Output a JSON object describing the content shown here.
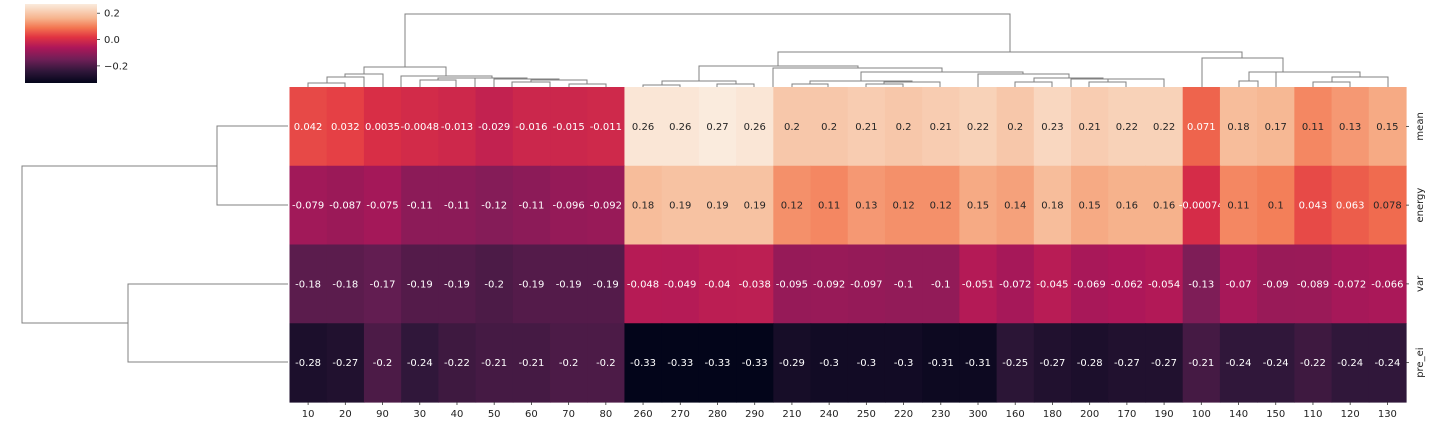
{
  "chart_data": {
    "type": "heatmap",
    "title": "",
    "xlabel": "",
    "ylabel": "",
    "columns": [
      "10",
      "20",
      "90",
      "30",
      "40",
      "50",
      "60",
      "70",
      "80",
      "260",
      "270",
      "280",
      "290",
      "210",
      "240",
      "250",
      "220",
      "230",
      "300",
      "160",
      "180",
      "200",
      "170",
      "190",
      "100",
      "140",
      "150",
      "110",
      "120",
      "130"
    ],
    "rows": [
      "mean",
      "energy",
      "var",
      "pre_ei"
    ],
    "values": [
      [
        0.042,
        0.032,
        0.0035,
        -0.0048,
        -0.013,
        -0.029,
        -0.016,
        -0.015,
        -0.011,
        0.26,
        0.26,
        0.27,
        0.26,
        0.2,
        0.2,
        0.21,
        0.2,
        0.21,
        0.22,
        0.2,
        0.23,
        0.21,
        0.22,
        0.22,
        0.071,
        0.18,
        0.17,
        0.11,
        0.13,
        0.15
      ],
      [
        -0.079,
        -0.087,
        -0.075,
        -0.11,
        -0.11,
        -0.12,
        -0.11,
        -0.096,
        -0.092,
        0.18,
        0.19,
        0.19,
        0.19,
        0.12,
        0.11,
        0.13,
        0.12,
        0.12,
        0.15,
        0.14,
        0.18,
        0.15,
        0.16,
        0.16,
        -0.00074,
        0.11,
        0.1,
        0.043,
        0.063,
        0.078
      ],
      [
        -0.18,
        -0.18,
        -0.17,
        -0.19,
        -0.19,
        -0.2,
        -0.19,
        -0.19,
        -0.19,
        -0.048,
        -0.049,
        -0.04,
        -0.038,
        -0.095,
        -0.092,
        -0.097,
        -0.1,
        -0.1,
        -0.051,
        -0.072,
        -0.045,
        -0.069,
        -0.062,
        -0.054,
        -0.13,
        -0.07,
        -0.09,
        -0.089,
        -0.072,
        -0.066
      ],
      [
        -0.28,
        -0.27,
        -0.2,
        -0.24,
        -0.22,
        -0.21,
        -0.21,
        -0.2,
        -0.2,
        -0.33,
        -0.33,
        -0.33,
        -0.33,
        -0.29,
        -0.3,
        -0.3,
        -0.3,
        -0.31,
        -0.31,
        -0.25,
        -0.27,
        -0.28,
        -0.27,
        -0.27,
        -0.21,
        -0.24,
        -0.24,
        -0.22,
        -0.24,
        -0.24
      ]
    ],
    "value_range": [
      -0.33,
      0.27
    ],
    "colormap": "rocket",
    "colorbar": {
      "ticks": [
        0.2,
        0.0,
        -0.2
      ],
      "tick_labels": [
        "0.2",
        "0.0",
        "−0.2"
      ],
      "placement": "top-left"
    },
    "annotations": true,
    "grid": false,
    "dendrograms": {
      "rows": "left",
      "columns": "top"
    }
  }
}
